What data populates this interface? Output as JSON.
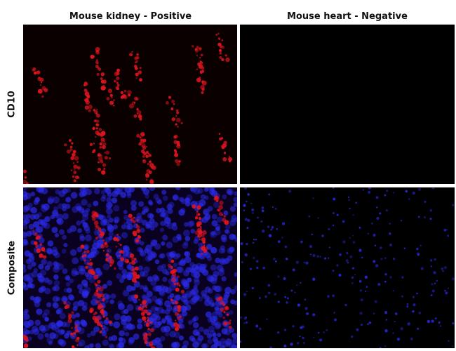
{
  "columns": [
    "Mouse kidney - Positive",
    "Mouse heart - Negative"
  ],
  "rows": [
    "CD10",
    "Composite"
  ],
  "colors": {
    "cd10": "#e0141e",
    "nuclei": "#2a2ae8",
    "background": "#000000"
  }
}
